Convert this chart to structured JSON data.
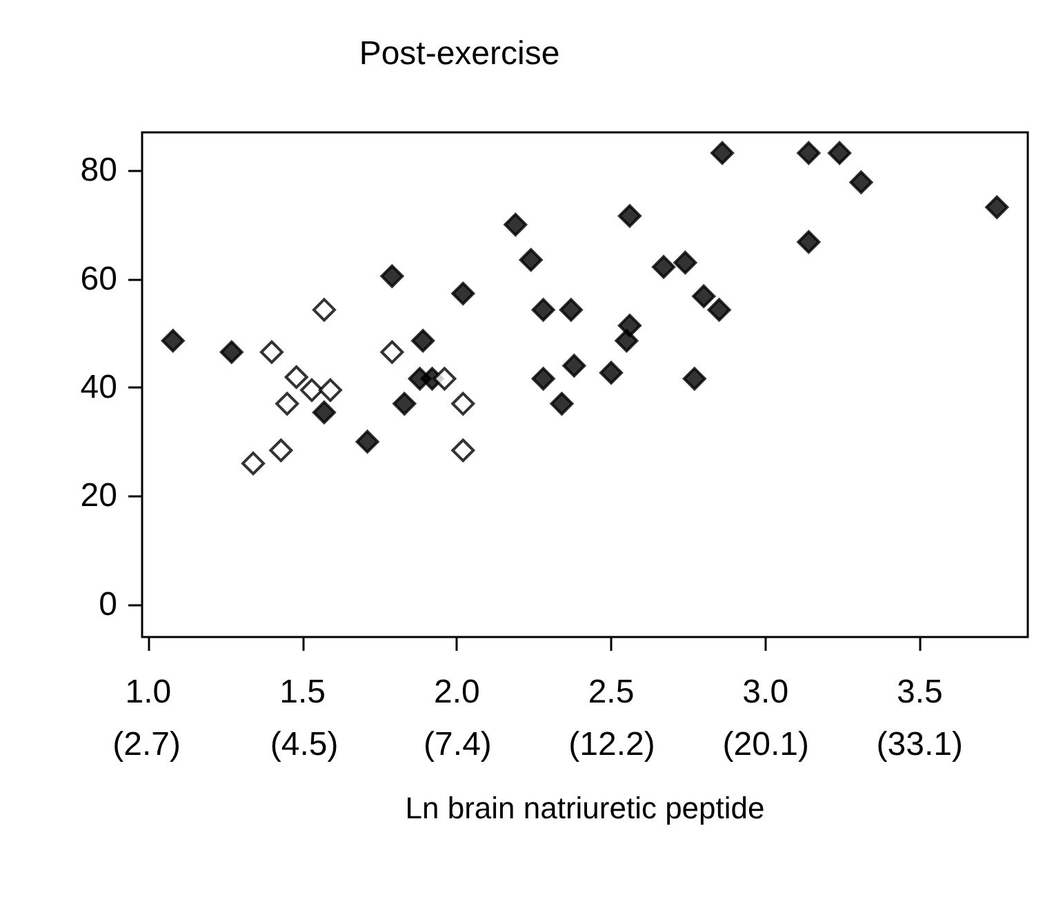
{
  "chart_data": {
    "type": "scatter",
    "title": "Post-exercise",
    "xlabel": "Ln brain natriuretic peptide",
    "xlim": [
      0.98,
      3.85
    ],
    "ylim": [
      -6,
      87
    ],
    "xticks": [
      {
        "value": 1,
        "label": "1.0"
      },
      {
        "value": 1.5,
        "label": "1.5"
      },
      {
        "value": 2,
        "label": "2.0"
      },
      {
        "value": 2.5,
        "label": "2.5"
      },
      {
        "value": 3,
        "label": "3.0"
      },
      {
        "value": 3.5,
        "label": "3.5"
      }
    ],
    "x2lim": [
      2.66,
      47.0
    ],
    "log": "x2",
    "x2ticks": [
      {
        "value": 2.7,
        "label": "(2.7)"
      },
      {
        "value": 4.5,
        "label": "(4.5)"
      },
      {
        "value": 7.4,
        "label": "(7.4)"
      },
      {
        "value": 12.2,
        "label": "(12.2)"
      },
      {
        "value": 20.1,
        "label": "(20.1)"
      },
      {
        "value": 33.1,
        "label": "(33.1)"
      }
    ],
    "yticks": [
      0,
      20,
      40,
      60,
      80
    ],
    "grid": false,
    "marker": "diamond",
    "series": [
      {
        "color": "#000000",
        "x": [
          1.08,
          1.27,
          1.57,
          1.71,
          1.79,
          1.89,
          1.88,
          1.92,
          1.83,
          2.02,
          2.19,
          2.24,
          2.56,
          2.28,
          2.37,
          2.28,
          2.38,
          2.34,
          2.5,
          2.56,
          2.55,
          2.67,
          2.74,
          2.77,
          2.8,
          2.85,
          2.86,
          3.14,
          3.24,
          3.31,
          3.14,
          3.75
        ],
        "values": [
          48.6,
          46.5,
          35.4,
          30,
          60.5,
          48.6,
          41.6,
          41.6,
          37,
          57.3,
          70,
          63.5,
          71.6,
          54.3,
          54.3,
          41.6,
          44,
          37,
          42.7,
          51.4,
          48.6,
          62.2,
          63,
          41.6,
          56.8,
          54.3,
          83.2,
          83.2,
          83.2,
          77.8,
          66.8,
          73.2
        ]
      },
      {
        "color": "#ffffff",
        "x": [
          1.4,
          1.57,
          1.48,
          1.53,
          1.59,
          1.45,
          1.43,
          1.34,
          1.79,
          1.96,
          2.02,
          2.02
        ],
        "values": [
          46.5,
          54.3,
          41.9,
          39.5,
          39.5,
          37,
          28.4,
          26,
          46.5,
          41.6,
          37,
          28.4
        ]
      }
    ]
  }
}
